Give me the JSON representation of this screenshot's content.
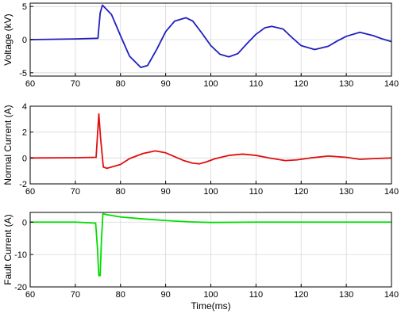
{
  "chart_data": [
    {
      "type": "line",
      "ylabel": "Voltage (kV)",
      "xlabel": "",
      "xlim": [
        60,
        140
      ],
      "ylim": [
        -5.5,
        5.5
      ],
      "xticks": [
        60,
        70,
        80,
        90,
        100,
        110,
        120,
        130,
        140
      ],
      "yticks": [
        -5,
        0,
        5
      ],
      "grid": true,
      "color": "#1f1fbf",
      "series": [
        {
          "x": [
            60,
            70,
            75,
            75.5,
            76,
            78,
            80,
            82,
            84.5,
            86,
            88,
            90,
            92,
            94.5,
            96,
            98,
            100,
            102,
            104,
            106,
            108,
            110,
            112,
            113.5,
            116,
            118,
            120,
            123,
            126,
            128,
            130,
            133,
            136,
            138,
            140
          ],
          "y": [
            0,
            0.1,
            0.2,
            4.0,
            5.2,
            3.8,
            0.6,
            -2.5,
            -4.2,
            -3.9,
            -1.5,
            1.2,
            2.8,
            3.3,
            2.8,
            1.0,
            -0.9,
            -2.2,
            -2.6,
            -2.1,
            -0.6,
            0.8,
            1.8,
            2.0,
            1.6,
            0.3,
            -0.9,
            -1.5,
            -1.0,
            -0.2,
            0.5,
            1.1,
            0.6,
            0.1,
            -0.3
          ]
        }
      ]
    },
    {
      "type": "line",
      "ylabel": "Normal Current (A)",
      "xlabel": "",
      "xlim": [
        60,
        140
      ],
      "ylim": [
        -2,
        4
      ],
      "xticks": [
        60,
        70,
        80,
        90,
        100,
        110,
        120,
        130,
        140
      ],
      "yticks": [
        -2,
        0,
        2,
        4
      ],
      "grid": true,
      "color": "#e01010",
      "series": [
        {
          "x": [
            60,
            70,
            74.6,
            75.2,
            75.6,
            76.2,
            77,
            78,
            80,
            82,
            85,
            87.7,
            90,
            92,
            94,
            96,
            97.5,
            99,
            101,
            104,
            107,
            110,
            113,
            116.5,
            119,
            122,
            126,
            130,
            133,
            136,
            140
          ],
          "y": [
            0,
            0.02,
            0.05,
            3.4,
            1.5,
            -0.7,
            -0.8,
            -0.7,
            -0.5,
            -0.05,
            0.35,
            0.55,
            0.4,
            0.1,
            -0.2,
            -0.4,
            -0.45,
            -0.3,
            -0.05,
            0.2,
            0.3,
            0.2,
            0.0,
            -0.2,
            -0.15,
            0.0,
            0.15,
            0.05,
            -0.1,
            -0.05,
            0.0
          ]
        }
      ]
    },
    {
      "type": "line",
      "ylabel": "Fault Current (A)",
      "xlabel": "Time(ms)",
      "xlim": [
        60,
        140
      ],
      "ylim": [
        -20,
        3
      ],
      "xticks": [
        60,
        70,
        80,
        90,
        100,
        110,
        120,
        130,
        140
      ],
      "yticks": [
        -20,
        -10,
        0
      ],
      "grid": true,
      "color": "#00dd00",
      "series": [
        {
          "x": [
            60,
            70,
            74.5,
            74.9,
            75.2,
            75.5,
            75.8,
            76.1,
            77,
            80,
            85,
            90,
            95,
            100,
            110,
            120,
            130,
            140
          ],
          "y": [
            0,
            0,
            -0.3,
            -8,
            -16.5,
            -16.5,
            -5,
            2.6,
            2.3,
            1.6,
            1.0,
            0.5,
            0.1,
            -0.1,
            0,
            0,
            0,
            0
          ]
        }
      ]
    }
  ]
}
